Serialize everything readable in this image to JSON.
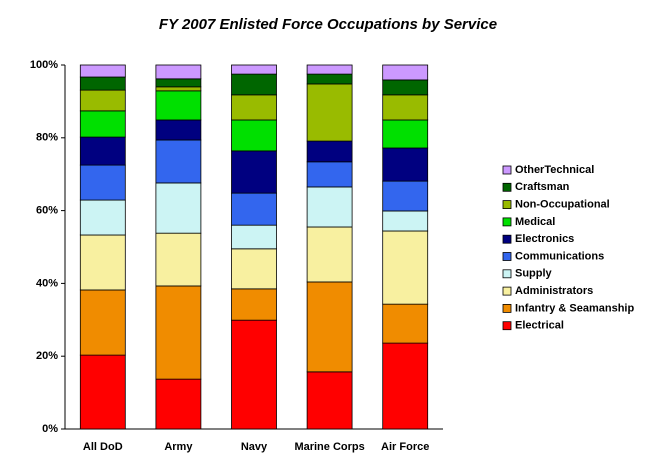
{
  "chart_data": {
    "type": "stacked_bar",
    "title": "FY 2007 Enlisted Force Occupations by Service",
    "categories": [
      "All DoD",
      "Army",
      "Navy",
      "Marine Corps",
      "Air Force"
    ],
    "series": [
      {
        "name": "Electrical",
        "color": "#ff0000",
        "values": [
          20.3,
          13.7,
          29.9,
          15.7,
          23.6
        ]
      },
      {
        "name": "Infantry & Seamanship",
        "color": "#f08c00",
        "values": [
          17.9,
          25.6,
          8.6,
          24.7,
          10.7
        ]
      },
      {
        "name": "Administrators",
        "color": "#f8f0a0",
        "values": [
          15.1,
          14.5,
          11.0,
          15.1,
          20.1
        ]
      },
      {
        "name": "Supply",
        "color": "#ccf4f4",
        "values": [
          9.6,
          13.8,
          6.5,
          11.0,
          5.5
        ]
      },
      {
        "name": "Communications",
        "color": "#3366ee",
        "values": [
          9.6,
          11.8,
          8.8,
          6.9,
          8.2
        ]
      },
      {
        "name": "Electronics",
        "color": "#000080",
        "values": [
          7.7,
          5.5,
          11.6,
          5.7,
          9.1
        ]
      },
      {
        "name": "Medical",
        "color": "#00e000",
        "values": [
          7.2,
          8.0,
          8.5,
          0,
          7.7
        ]
      },
      {
        "name": "Non-Occupational",
        "color": "#99bb00",
        "values": [
          5.7,
          1.1,
          6.9,
          15.7,
          6.9
        ]
      },
      {
        "name": "Craftsman",
        "color": "#006600",
        "values": [
          3.6,
          2.2,
          5.7,
          2.7,
          4.1
        ]
      },
      {
        "name": "OtherTechnical",
        "color": "#cc99ff",
        "values": [
          3.3,
          3.8,
          2.5,
          2.5,
          4.1
        ]
      }
    ],
    "ylim": [
      0,
      100
    ],
    "yticks": [
      {
        "value": 0,
        "label": "0%"
      },
      {
        "value": 20,
        "label": "20%"
      },
      {
        "value": 40,
        "label": "40%"
      },
      {
        "value": 60,
        "label": "60%"
      },
      {
        "value": 80,
        "label": "80%"
      },
      {
        "value": 100,
        "label": "100%"
      }
    ]
  }
}
